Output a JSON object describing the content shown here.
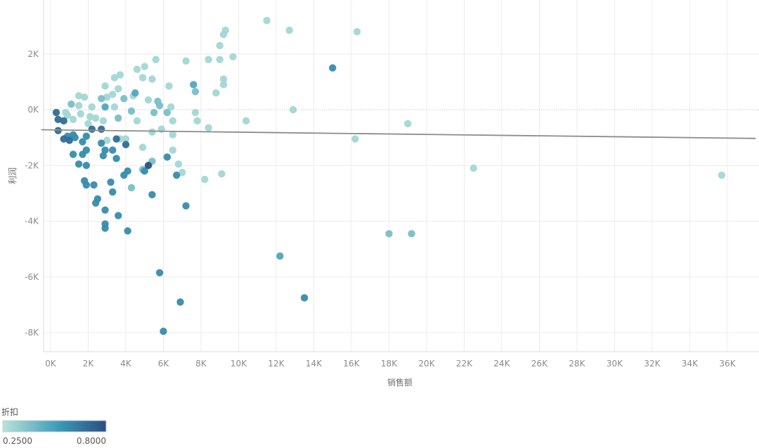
{
  "chart_data": {
    "type": "scatter",
    "xlabel": "销售额",
    "ylabel": "利润",
    "xlim": [
      -500,
      37500
    ],
    "ylim": [
      -8700,
      3900
    ],
    "xticks": [
      {
        "v": 0,
        "label": "0K"
      },
      {
        "v": 2000,
        "label": "2K"
      },
      {
        "v": 4000,
        "label": "4K"
      },
      {
        "v": 6000,
        "label": "6K"
      },
      {
        "v": 8000,
        "label": "8K"
      },
      {
        "v": 10000,
        "label": "10K"
      },
      {
        "v": 12000,
        "label": "12K"
      },
      {
        "v": 14000,
        "label": "14K"
      },
      {
        "v": 16000,
        "label": "16K"
      },
      {
        "v": 18000,
        "label": "18K"
      },
      {
        "v": 20000,
        "label": "20K"
      },
      {
        "v": 22000,
        "label": "22K"
      },
      {
        "v": 24000,
        "label": "24K"
      },
      {
        "v": 26000,
        "label": "26K"
      },
      {
        "v": 28000,
        "label": "28K"
      },
      {
        "v": 30000,
        "label": "30K"
      },
      {
        "v": 32000,
        "label": "32K"
      },
      {
        "v": 34000,
        "label": "34K"
      },
      {
        "v": 36000,
        "label": "36K"
      }
    ],
    "yticks": [
      {
        "v": 2000,
        "label": "2K"
      },
      {
        "v": 0,
        "label": "0K"
      },
      {
        "v": -2000,
        "label": "-2K"
      },
      {
        "v": -4000,
        "label": "-4K"
      },
      {
        "v": -6000,
        "label": "-6K"
      },
      {
        "v": -8000,
        "label": "-8K"
      }
    ],
    "grid": true,
    "trend_line": [
      [
        -500,
        -720
      ],
      [
        37500,
        -1030
      ]
    ],
    "color_legend": {
      "title": "折扣",
      "min_label": "0.2500",
      "max_label": "0.8000",
      "min": 0.25,
      "max": 0.8,
      "colors": [
        "#b7e3d9",
        "#3a9ab8",
        "#2a4f7f"
      ]
    },
    "points": [
      {
        "x": 11500,
        "y": 3200,
        "d": 0.3
      },
      {
        "x": 12700,
        "y": 2850,
        "d": 0.3
      },
      {
        "x": 16300,
        "y": 2800,
        "d": 0.3
      },
      {
        "x": 9300,
        "y": 2850,
        "d": 0.3
      },
      {
        "x": 9200,
        "y": 2700,
        "d": 0.3
      },
      {
        "x": 9000,
        "y": 2300,
        "d": 0.3
      },
      {
        "x": 8400,
        "y": 1800,
        "d": 0.3
      },
      {
        "x": 9000,
        "y": 1800,
        "d": 0.3
      },
      {
        "x": 9700,
        "y": 1900,
        "d": 0.3
      },
      {
        "x": 5600,
        "y": 1800,
        "d": 0.3
      },
      {
        "x": 7200,
        "y": 1750,
        "d": 0.3
      },
      {
        "x": 5000,
        "y": 1550,
        "d": 0.3
      },
      {
        "x": 4600,
        "y": 1450,
        "d": 0.3
      },
      {
        "x": 3700,
        "y": 1250,
        "d": 0.3
      },
      {
        "x": 3400,
        "y": 1150,
        "d": 0.3
      },
      {
        "x": 5400,
        "y": 1100,
        "d": 0.3
      },
      {
        "x": 4900,
        "y": 1150,
        "d": 0.3
      },
      {
        "x": 9200,
        "y": 1100,
        "d": 0.3
      },
      {
        "x": 9200,
        "y": 900,
        "d": 0.3
      },
      {
        "x": 8800,
        "y": 600,
        "d": 0.3
      },
      {
        "x": 7700,
        "y": 650,
        "d": 0.4
      },
      {
        "x": 7600,
        "y": 900,
        "d": 0.5
      },
      {
        "x": 15000,
        "y": 1500,
        "d": 0.6
      },
      {
        "x": 2900,
        "y": 850,
        "d": 0.3
      },
      {
        "x": 3600,
        "y": 750,
        "d": 0.3
      },
      {
        "x": 6300,
        "y": 850,
        "d": 0.3
      },
      {
        "x": 1500,
        "y": 500,
        "d": 0.3
      },
      {
        "x": 1800,
        "y": 450,
        "d": 0.3
      },
      {
        "x": 3000,
        "y": 450,
        "d": 0.3
      },
      {
        "x": 3300,
        "y": 550,
        "d": 0.3
      },
      {
        "x": 4400,
        "y": 500,
        "d": 0.3
      },
      {
        "x": 4500,
        "y": 600,
        "d": 0.5
      },
      {
        "x": 2700,
        "y": 400,
        "d": 0.4
      },
      {
        "x": 3900,
        "y": 400,
        "d": 0.4
      },
      {
        "x": 5200,
        "y": 350,
        "d": 0.3
      },
      {
        "x": 5700,
        "y": 300,
        "d": 0.4
      },
      {
        "x": 1100,
        "y": 200,
        "d": 0.4
      },
      {
        "x": 1500,
        "y": 150,
        "d": 0.3
      },
      {
        "x": 2200,
        "y": 100,
        "d": 0.3
      },
      {
        "x": 2900,
        "y": 100,
        "d": 0.5
      },
      {
        "x": 3400,
        "y": 100,
        "d": 0.3
      },
      {
        "x": 5800,
        "y": 150,
        "d": 0.4
      },
      {
        "x": 6400,
        "y": 100,
        "d": 0.3
      },
      {
        "x": 12900,
        "y": 0,
        "d": 0.3
      },
      {
        "x": 7700,
        "y": -100,
        "d": 0.3
      },
      {
        "x": 6200,
        "y": -100,
        "d": 0.4
      },
      {
        "x": 5500,
        "y": -100,
        "d": 0.4
      },
      {
        "x": 4300,
        "y": -50,
        "d": 0.4
      },
      {
        "x": 3600,
        "y": -300,
        "d": 0.4
      },
      {
        "x": 10400,
        "y": -400,
        "d": 0.3
      },
      {
        "x": 7800,
        "y": -400,
        "d": 0.3
      },
      {
        "x": 8400,
        "y": -650,
        "d": 0.3
      },
      {
        "x": 19000,
        "y": -500,
        "d": 0.3
      },
      {
        "x": 6500,
        "y": -400,
        "d": 0.3
      },
      {
        "x": 5900,
        "y": -700,
        "d": 0.3
      },
      {
        "x": 5400,
        "y": -800,
        "d": 0.3
      },
      {
        "x": 4600,
        "y": -400,
        "d": 0.3
      },
      {
        "x": 2800,
        "y": -400,
        "d": 0.3
      },
      {
        "x": 2000,
        "y": -500,
        "d": 0.3
      },
      {
        "x": 900,
        "y": -200,
        "d": 0.3
      },
      {
        "x": 1200,
        "y": -350,
        "d": 0.3
      },
      {
        "x": 1600,
        "y": -150,
        "d": 0.3
      },
      {
        "x": 800,
        "y": -100,
        "d": 0.3
      },
      {
        "x": 2100,
        "y": -250,
        "d": 0.3
      },
      {
        "x": 2400,
        "y": -300,
        "d": 0.3
      },
      {
        "x": 6500,
        "y": -900,
        "d": 0.3
      },
      {
        "x": 3000,
        "y": -1100,
        "d": 0.3
      },
      {
        "x": 3700,
        "y": -1050,
        "d": 0.3
      },
      {
        "x": 4000,
        "y": -1050,
        "d": 0.3
      },
      {
        "x": 16200,
        "y": -1050,
        "d": 0.3
      },
      {
        "x": 4900,
        "y": -1350,
        "d": 0.3
      },
      {
        "x": 6500,
        "y": -1450,
        "d": 0.3
      },
      {
        "x": 6800,
        "y": -1950,
        "d": 0.3
      },
      {
        "x": 7000,
        "y": -2250,
        "d": 0.3
      },
      {
        "x": 9100,
        "y": -2300,
        "d": 0.3
      },
      {
        "x": 8200,
        "y": -2500,
        "d": 0.3
      },
      {
        "x": 22500,
        "y": -2100,
        "d": 0.3
      },
      {
        "x": 35700,
        "y": -2350,
        "d": 0.3
      },
      {
        "x": 4300,
        "y": -2800,
        "d": 0.4
      },
      {
        "x": 4900,
        "y": -2150,
        "d": 0.4
      },
      {
        "x": 5400,
        "y": -1850,
        "d": 0.4
      },
      {
        "x": 300,
        "y": -100,
        "d": 0.7
      },
      {
        "x": 400,
        "y": -350,
        "d": 0.7
      },
      {
        "x": 700,
        "y": -400,
        "d": 0.7
      },
      {
        "x": 400,
        "y": -750,
        "d": 0.7
      },
      {
        "x": 900,
        "y": -950,
        "d": 0.6
      },
      {
        "x": 1200,
        "y": -900,
        "d": 0.6
      },
      {
        "x": 700,
        "y": -1050,
        "d": 0.7
      },
      {
        "x": 1000,
        "y": -1100,
        "d": 0.7
      },
      {
        "x": 1300,
        "y": -1000,
        "d": 0.6
      },
      {
        "x": 1900,
        "y": -950,
        "d": 0.6
      },
      {
        "x": 2200,
        "y": -700,
        "d": 0.7
      },
      {
        "x": 2700,
        "y": -700,
        "d": 0.7
      },
      {
        "x": 1700,
        "y": -1150,
        "d": 0.6
      },
      {
        "x": 2700,
        "y": -1200,
        "d": 0.6
      },
      {
        "x": 3500,
        "y": -1050,
        "d": 0.7
      },
      {
        "x": 1200,
        "y": -1600,
        "d": 0.6
      },
      {
        "x": 1700,
        "y": -1600,
        "d": 0.6
      },
      {
        "x": 1900,
        "y": -1450,
        "d": 0.6
      },
      {
        "x": 2900,
        "y": -1450,
        "d": 0.6
      },
      {
        "x": 3300,
        "y": -1450,
        "d": 0.6
      },
      {
        "x": 2800,
        "y": -1650,
        "d": 0.6
      },
      {
        "x": 3500,
        "y": -1750,
        "d": 0.6
      },
      {
        "x": 4000,
        "y": -1250,
        "d": 0.7
      },
      {
        "x": 1500,
        "y": -1950,
        "d": 0.6
      },
      {
        "x": 1900,
        "y": -2000,
        "d": 0.6
      },
      {
        "x": 4100,
        "y": -2200,
        "d": 0.6
      },
      {
        "x": 3900,
        "y": -2350,
        "d": 0.6
      },
      {
        "x": 5200,
        "y": -2000,
        "d": 0.8
      },
      {
        "x": 6200,
        "y": -1700,
        "d": 0.6
      },
      {
        "x": 5000,
        "y": -2200,
        "d": 0.6
      },
      {
        "x": 6700,
        "y": -2350,
        "d": 0.6
      },
      {
        "x": 1800,
        "y": -2550,
        "d": 0.6
      },
      {
        "x": 1900,
        "y": -2700,
        "d": 0.6
      },
      {
        "x": 2300,
        "y": -2700,
        "d": 0.6
      },
      {
        "x": 3200,
        "y": -2600,
        "d": 0.6
      },
      {
        "x": 3300,
        "y": -2950,
        "d": 0.6
      },
      {
        "x": 2500,
        "y": -3200,
        "d": 0.6
      },
      {
        "x": 2400,
        "y": -3350,
        "d": 0.6
      },
      {
        "x": 2900,
        "y": -3600,
        "d": 0.6
      },
      {
        "x": 5400,
        "y": -3050,
        "d": 0.6
      },
      {
        "x": 7200,
        "y": -3450,
        "d": 0.6
      },
      {
        "x": 3600,
        "y": -3800,
        "d": 0.6
      },
      {
        "x": 2900,
        "y": -4100,
        "d": 0.6
      },
      {
        "x": 2900,
        "y": -4250,
        "d": 0.6
      },
      {
        "x": 4100,
        "y": -4350,
        "d": 0.6
      },
      {
        "x": 18000,
        "y": -4450,
        "d": 0.4
      },
      {
        "x": 19200,
        "y": -4450,
        "d": 0.4
      },
      {
        "x": 12200,
        "y": -5250,
        "d": 0.5
      },
      {
        "x": 5800,
        "y": -5850,
        "d": 0.6
      },
      {
        "x": 6900,
        "y": -6900,
        "d": 0.6
      },
      {
        "x": 13500,
        "y": -6750,
        "d": 0.6
      },
      {
        "x": 6000,
        "y": -7950,
        "d": 0.6
      }
    ]
  }
}
